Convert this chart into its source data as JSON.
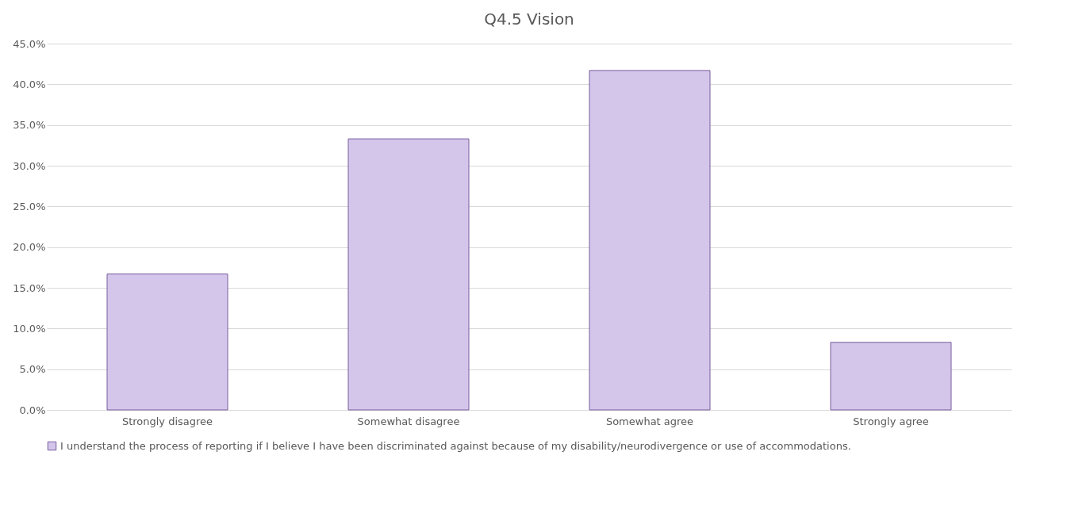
{
  "chart_data": {
    "type": "bar",
    "title": "Q4.5 Vision",
    "categories": [
      "Strongly disagree",
      "Somewhat disagree",
      "Somewhat agree",
      "Strongly agree"
    ],
    "series": [
      {
        "name": "I understand the process of reporting if I believe I have been discriminated against because of my disability/neurodivergence or use of accommodations.",
        "color": "#d3c6ea",
        "values": [
          16.7,
          33.3,
          41.7,
          8.3
        ]
      }
    ],
    "ylim": [
      0,
      45
    ],
    "yticks": [
      {
        "value": 0,
        "label": "0.0%"
      },
      {
        "value": 5,
        "label": "5.0%"
      },
      {
        "value": 10,
        "label": "10.0%"
      },
      {
        "value": 15,
        "label": "15.0%"
      },
      {
        "value": 20,
        "label": "20.0%"
      },
      {
        "value": 25,
        "label": "25.0%"
      },
      {
        "value": 30,
        "label": "30.0%"
      },
      {
        "value": 35,
        "label": "35.0%"
      },
      {
        "value": 40,
        "label": "40.0%"
      },
      {
        "value": 45,
        "label": "45.0%"
      }
    ],
    "grid": "y",
    "legend": "bottom"
  }
}
